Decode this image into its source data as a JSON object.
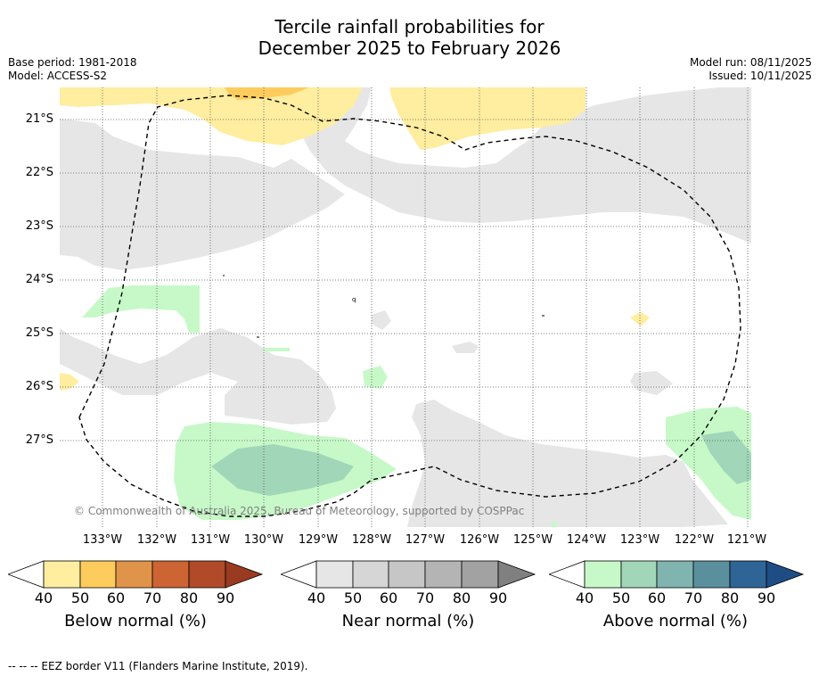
{
  "title": {
    "line1": "Tercile rainfall probabilities for",
    "line2": "December 2025 to February 2026"
  },
  "meta": {
    "base_period": "Base period: 1981-2018",
    "model": "Model: ACCESS-S2",
    "model_run": "Model run: 08/11/2025",
    "issued": "Issued: 10/11/2025"
  },
  "map": {
    "lat_labels": [
      "21°S",
      "22°S",
      "23°S",
      "24°S",
      "25°S",
      "26°S",
      "27°S"
    ],
    "lon_labels": [
      "133°W",
      "132°W",
      "131°W",
      "130°W",
      "129°W",
      "128°W",
      "127°W",
      "126°W",
      "125°W",
      "124°W",
      "123°W",
      "122°W",
      "121°W"
    ],
    "copyright": "© Commonwealth of Australia 2025, Bureau of Meteorology, supported by COSPPac",
    "eez_border_color": "#000000"
  },
  "colorbars": [
    {
      "id": "below",
      "title": "Below normal (%)",
      "ticks": [
        "40",
        "50",
        "60",
        "70",
        "80",
        "90"
      ],
      "colors": [
        "#ffffff",
        "#ffeda0",
        "#fecc5c",
        "#e0944a",
        "#cd6433",
        "#b04a28",
        "#9a3a20"
      ]
    },
    {
      "id": "near",
      "title": "Near normal (%)",
      "ticks": [
        "40",
        "50",
        "60",
        "70",
        "80",
        "90"
      ],
      "colors": [
        "#ffffff",
        "#e6e6e6",
        "#d6d6d6",
        "#c6c6c6",
        "#b4b4b4",
        "#a2a2a2",
        "#808080"
      ]
    },
    {
      "id": "above",
      "title": "Above normal (%)",
      "ticks": [
        "40",
        "50",
        "60",
        "70",
        "80",
        "90"
      ],
      "colors": [
        "#ffffff",
        "#c7f9c8",
        "#a1d6b8",
        "#7fb4b0",
        "#5a8f9e",
        "#2f6596",
        "#1e4d86"
      ]
    }
  ],
  "colors": {
    "near_fill": "#e6e6e6",
    "below_fill": "#ffeda0",
    "below_fill_2": "#fecc5c",
    "above_fill": "#c7f9c8",
    "above_fill_2": "#a1d6b8"
  },
  "footer": {
    "legend_text": "-- -- -- EEZ border V11 (Flanders Marine Institute, 2019)."
  }
}
